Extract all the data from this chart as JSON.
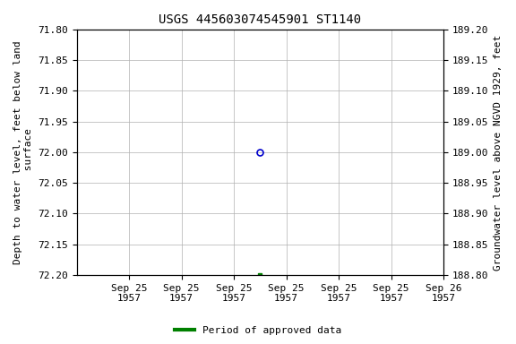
{
  "title": "USGS 445603074545901 ST1140",
  "ylabel_left": "Depth to water level, feet below land\n surface",
  "ylabel_right": "Groundwater level above NGVD 1929, feet",
  "ylim_left": [
    72.2,
    71.8
  ],
  "ylim_right": [
    188.8,
    189.2
  ],
  "yticks_left": [
    71.8,
    71.85,
    71.9,
    71.95,
    72.0,
    72.05,
    72.1,
    72.15,
    72.2
  ],
  "yticks_right": [
    189.2,
    189.15,
    189.1,
    189.05,
    189.0,
    188.95,
    188.9,
    188.85,
    188.8
  ],
  "point_open_x_hours": 84,
  "point_open_y": 72.0,
  "point_filled_x_hours": 84,
  "point_filled_y": 72.2,
  "open_marker_color": "#0000cc",
  "filled_marker_color": "#008000",
  "legend_label": "Period of approved data",
  "legend_color": "#008000",
  "bg_color": "#ffffff",
  "grid_color": "#b0b0b0",
  "title_fontsize": 10,
  "axis_label_fontsize": 8,
  "tick_fontsize": 8,
  "xlim_start_hours": 0,
  "xlim_end_hours": 168,
  "xtick_hours": [
    24,
    48,
    72,
    96,
    120,
    144,
    168
  ],
  "xtick_labels": [
    "Sep 25\n1957",
    "Sep 25\n1957",
    "Sep 25\n1957",
    "Sep 25\n1957",
    "Sep 25\n1957",
    "Sep 25\n1957",
    "Sep 26\n1957"
  ]
}
